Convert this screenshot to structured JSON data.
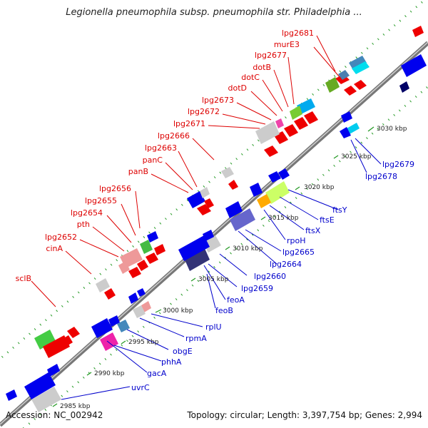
{
  "title": "Legionella pneumophila subsp. pneumophila str. Philadelphia ...",
  "footer": {
    "accession": "Accession: NC_002942",
    "stats": "Topology: circular; Length: 3,397,754 bp; Genes: 2,994"
  },
  "colors": {
    "top_label": "#dd0000",
    "bottom_label": "#0000cc",
    "leader_top": "#dd0000",
    "leader_bottom": "#0000cc"
  },
  "labels_top": [
    "lpg2681",
    "murE3",
    "lpg2677",
    "dotB",
    "dotC",
    "dotD",
    "lpg2673",
    "lpg2672",
    "lpg2671",
    "lpg2666",
    "lpg2663",
    "panC",
    "panB",
    "lpg2656",
    "lpg2655",
    "lpg2654",
    "pth",
    "lpg2652",
    "cinA",
    "sclB"
  ],
  "labels_bottom": [
    "lpg2679",
    "lpg2678",
    "ftsY",
    "ftsE",
    "ftsX",
    "rpoH",
    "lpg2665",
    "lpg2664",
    "lpg2660",
    "lpg2659",
    "feoA",
    "feoB",
    "rplU",
    "rpmA",
    "obgE",
    "phhA",
    "gacA",
    "uvrC"
  ],
  "kbp_marks": [
    "3030 kbp",
    "3025 kbp",
    "3020 kbp",
    "3015 kbp",
    "3010 kbp",
    "3005 kbp",
    "3000 kbp",
    "2995 kbp",
    "2990 kbp",
    "2985 kbp"
  ]
}
